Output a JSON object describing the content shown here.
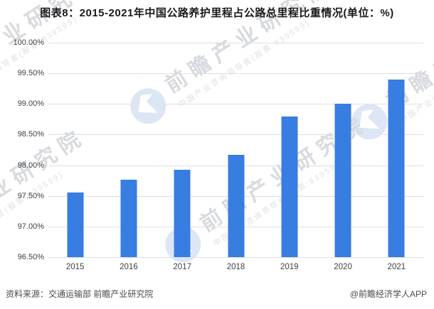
{
  "title": "图表8：2015-2021年中国公路养护里程占公路总里程比重情况(单位：%)",
  "footer": {
    "source": "资料来源：交通运输部 前瞻产业研究院",
    "credit": "@前瞻经济学人APP"
  },
  "watermark": {
    "logo_icon": "qianzhan-circle-logo",
    "brand": "前瞻产业研究院",
    "tagline": "中国产业咨询领导者(股票:839599)"
  },
  "colors": {
    "bar": "#377DE2",
    "grid": "#dfdfe2",
    "axis_text": "#3f3f3f",
    "title_text": "#1a1a1a",
    "footer_text": "#4a4a4a",
    "watermark_text": "#d7dade",
    "watermark_text_light": "#dfe1e5",
    "watermark_logo": "#dde6f5"
  },
  "chart_data": {
    "type": "bar",
    "title": "图表8：2015-2021年中国公路养护里程占公路总里程比重情况(单位：%)",
    "categories": [
      "2015",
      "2016",
      "2017",
      "2018",
      "2019",
      "2020",
      "2021"
    ],
    "values": [
      97.56,
      97.76,
      97.93,
      98.17,
      98.8,
      99.0,
      99.4
    ],
    "xlabel": "",
    "ylabel": "",
    "ylim": [
      96.5,
      100.0
    ],
    "ytick_step": 0.5,
    "ytick_labels": [
      "100.00%",
      "99.50%",
      "99.00%",
      "98.50%",
      "98.00%",
      "97.50%",
      "97.00%",
      "96.50%"
    ],
    "grid": true,
    "legend_position": "none"
  }
}
